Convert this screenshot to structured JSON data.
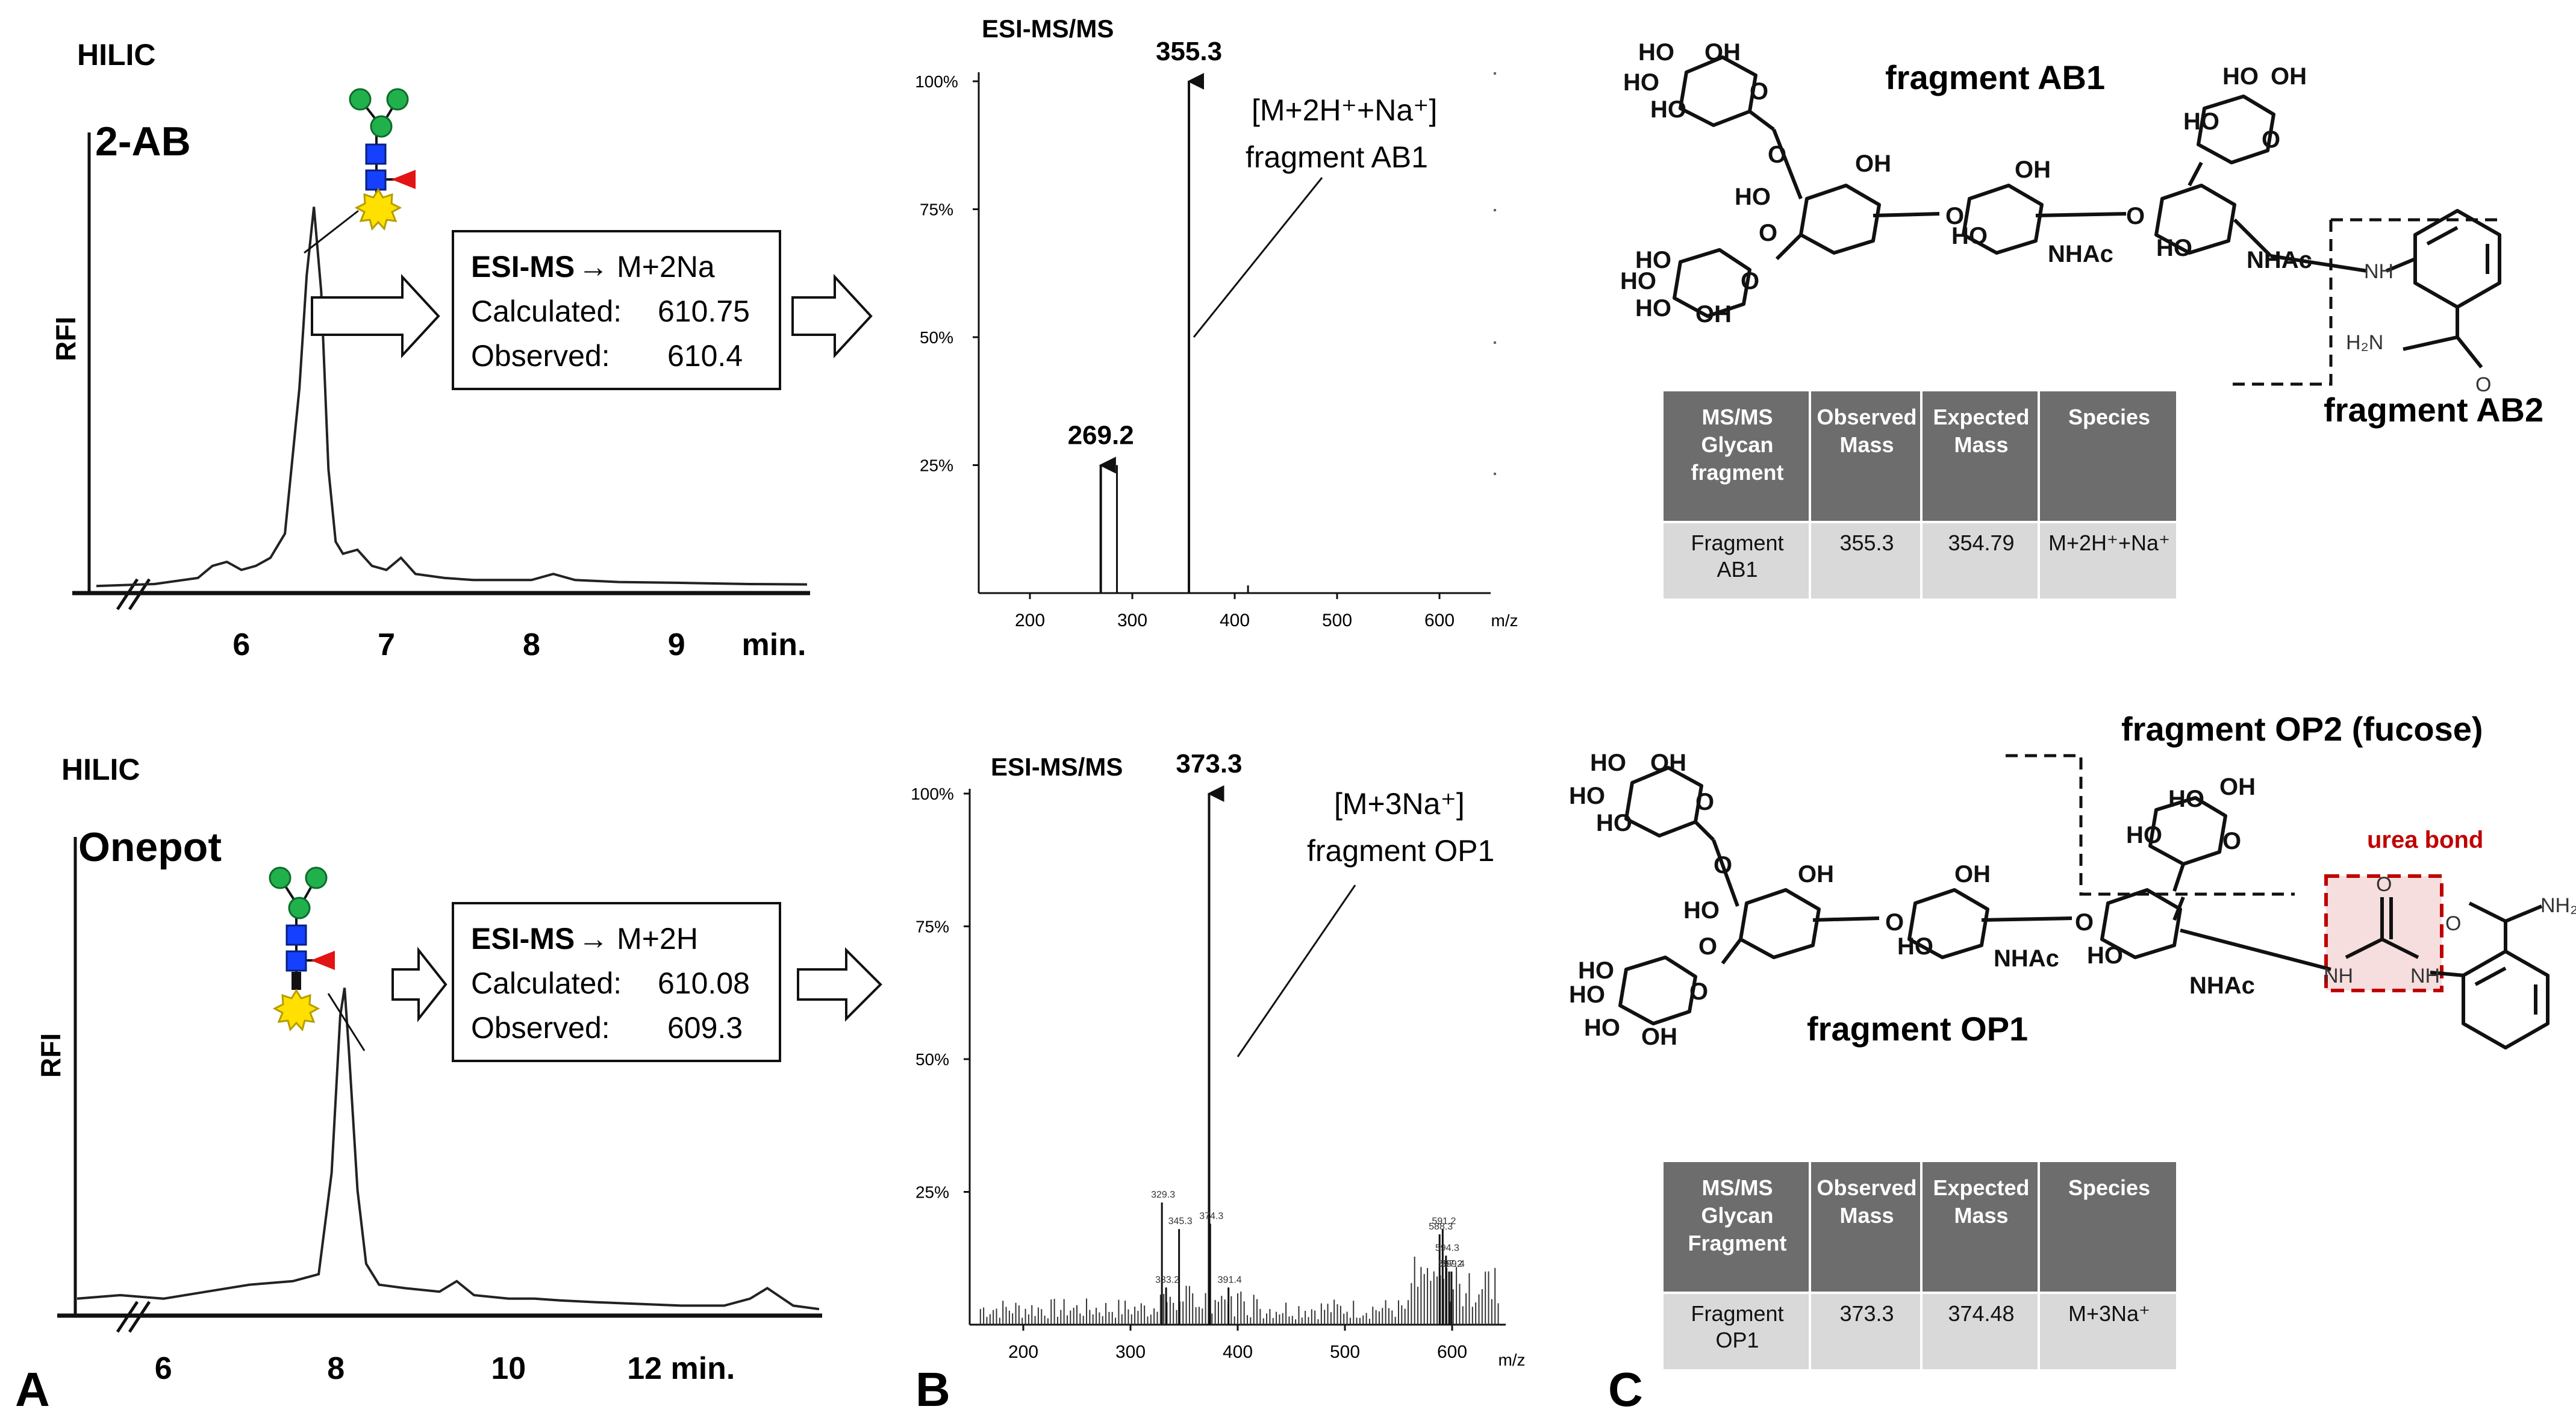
{
  "colors": {
    "axis": "#111111",
    "trace": "#222222",
    "table_header": "#6d6d6d",
    "table_header_text": "#ffffff",
    "table_row": "#d9d9d9",
    "urea": "#c00000",
    "urea_fill": "#f6dede",
    "galactose": "#21b14c",
    "glcnac": "#1540ff",
    "fucose": "#e21414",
    "tag_sun": "#ffe000",
    "tag_sun_edge": "#b59c00"
  },
  "panel_labels": {
    "a": "A",
    "b": "B",
    "c": "C"
  },
  "panel_a": {
    "top": {
      "method": "HILIC",
      "label": "2-AB",
      "ylabel": "RFI",
      "ms": {
        "head": "ESI-MS",
        "ion": "M+2Na",
        "calc_label": "Calculated:",
        "calc_value": "610.75",
        "obs_label": "Observed:",
        "obs_value": "610.4"
      },
      "glycan_icons": [
        "galactose-circle",
        "galactose-circle",
        "glcnac-square",
        "glcnac-square",
        "fucose-triangle",
        "fluorescent-tag-sun"
      ]
    },
    "bottom": {
      "method": "HILIC",
      "label": "Onepot",
      "ylabel": "RFI",
      "ms": {
        "head": "ESI-MS",
        "ion": "M+2H",
        "calc_label": "Calculated:",
        "calc_value": "610.08",
        "obs_label": "Observed:",
        "obs_value": "609.3"
      },
      "glycan_icons": [
        "galactose-circle",
        "galactose-circle",
        "glcnac-square",
        "glcnac-square",
        "fucose-triangle",
        "linker-bar",
        "fluorescent-tag-sun"
      ]
    }
  },
  "panel_c": {
    "top": {
      "frag1": "fragment AB1",
      "frag2": "fragment AB2",
      "table": {
        "headers": [
          "MS/MS Glycan fragment",
          "Observed Mass",
          "Expected Mass",
          "Species"
        ],
        "rows": [
          [
            "Fragment AB1",
            "355.3",
            "354.79",
            "M+2H⁺+Na⁺"
          ]
        ]
      }
    },
    "bottom": {
      "frag1": "fragment OP1",
      "frag2": "fragment OP2 (fucose)",
      "urea": "urea bond",
      "table": {
        "headers": [
          "MS/MS Glycan Fragment",
          "Observed Mass",
          "Expected Mass",
          "Species"
        ],
        "rows": [
          [
            "Fragment OP1",
            "373.3",
            "374.48",
            "M+3Na⁺"
          ]
        ]
      }
    },
    "mol": {
      "HO": "HO",
      "OH": "OH",
      "O": "O",
      "NHAc": "NHAc",
      "NH": "NH",
      "H2N": "H₂N",
      "NH2": "NH₂",
      "O_small": "O"
    }
  },
  "chart_data": [
    {
      "id": "hilic_2ab",
      "type": "line",
      "title": "2-AB",
      "xlabel": "min.",
      "ylabel": "RFI",
      "xlim": [
        5.0,
        9.9
      ],
      "ylim": [
        0,
        100
      ],
      "xticks": [
        6,
        7,
        8,
        9
      ],
      "xtick_labels": [
        "6",
        "7",
        "8",
        "9"
      ],
      "xunit_label": "min.",
      "x": [
        5.0,
        5.4,
        5.7,
        5.8,
        5.9,
        6.0,
        6.1,
        6.2,
        6.3,
        6.4,
        6.45,
        6.5,
        6.55,
        6.6,
        6.65,
        6.7,
        6.8,
        6.9,
        7.0,
        7.1,
        7.2,
        7.4,
        7.6,
        8.0,
        8.15,
        8.3,
        8.6,
        9.0,
        9.5,
        9.9
      ],
      "y": [
        1,
        1.5,
        3,
        6,
        7,
        5,
        6,
        8,
        14,
        50,
        78,
        95,
        74,
        30,
        12,
        9,
        10,
        6,
        5,
        8,
        4,
        3,
        2.5,
        2.5,
        4,
        2.5,
        2,
        1.8,
        1.5,
        1.4
      ]
    },
    {
      "id": "msms_ab1",
      "type": "bar",
      "title": "ESI-MS/MS",
      "xlabel": "m/z",
      "ylabel": "",
      "xlim": [
        150,
        650
      ],
      "ylim": [
        0,
        100
      ],
      "xticks": [
        200,
        300,
        400,
        500,
        600
      ],
      "xtick_labels": [
        "200",
        "300",
        "400",
        "500",
        "600"
      ],
      "yticks": [
        25,
        50,
        75,
        100
      ],
      "ytick_labels": [
        "25%",
        "50%",
        "75%",
        "100%"
      ],
      "x": [
        269.2,
        285,
        355.3,
        413
      ],
      "y": [
        25,
        25,
        100,
        1.5
      ],
      "arrows": [
        269.2,
        355.3
      ],
      "labels": [
        {
          "x": 269.2,
          "text": "269.2"
        },
        {
          "x": 355.3,
          "text": "355.3"
        }
      ],
      "annotation": {
        "ion": "[M+2H⁺+Na⁺]",
        "fragment": "fragment AB1"
      }
    },
    {
      "id": "hilic_onepot",
      "type": "line",
      "title": "Onepot",
      "xlabel": "min.",
      "ylabel": "RFI",
      "xlim": [
        5.0,
        13.6
      ],
      "ylim": [
        0,
        100
      ],
      "xticks": [
        6,
        8,
        10,
        12
      ],
      "xtick_labels": [
        "6",
        "8",
        "10",
        "12 min."
      ],
      "x": [
        5.0,
        5.5,
        6.0,
        6.5,
        7.0,
        7.5,
        7.8,
        7.95,
        8.05,
        8.1,
        8.15,
        8.25,
        8.35,
        8.5,
        8.8,
        9.2,
        9.4,
        9.6,
        10.0,
        10.3,
        10.6,
        11.0,
        11.5,
        12.0,
        12.5,
        12.8,
        13.0,
        13.3,
        13.6
      ],
      "y": [
        4,
        5,
        4,
        6,
        8,
        9,
        11,
        40,
        85,
        93,
        75,
        35,
        14,
        8,
        7,
        6,
        9,
        5,
        4,
        4,
        3.5,
        3,
        2.5,
        2,
        2,
        4,
        7,
        2,
        1
      ]
    },
    {
      "id": "msms_op1",
      "type": "bar",
      "title": "ESI-MS/MS",
      "xlabel": "m/z",
      "ylabel": "",
      "xlim": [
        150,
        650
      ],
      "ylim": [
        0,
        100
      ],
      "xticks": [
        200,
        300,
        400,
        500,
        600
      ],
      "xtick_labels": [
        "200",
        "300",
        "400",
        "500",
        "600"
      ],
      "yticks": [
        25,
        50,
        75,
        100
      ],
      "ytick_labels": [
        "25%",
        "50%",
        "75%",
        "100%"
      ],
      "x": [
        329.3,
        333.2,
        345.3,
        373.3,
        374.3,
        391.4,
        588.3,
        591.2,
        597.2,
        594.3,
        599.4
      ],
      "y": [
        23,
        7,
        18,
        100,
        19,
        7,
        17,
        18,
        10,
        13,
        10
      ],
      "arrows": [
        373.3
      ],
      "labels": [
        {
          "x": 373.3,
          "text": "373.3"
        }
      ],
      "minor_labels": [
        "329.3",
        "333.2",
        "345.3",
        "374.3",
        "391.4",
        "588.3",
        "591.2",
        "597.2",
        "594.3",
        "599.4"
      ],
      "annotation": {
        "ion": "[M+3Na⁺]",
        "fragment": "fragment OP1"
      }
    }
  ]
}
